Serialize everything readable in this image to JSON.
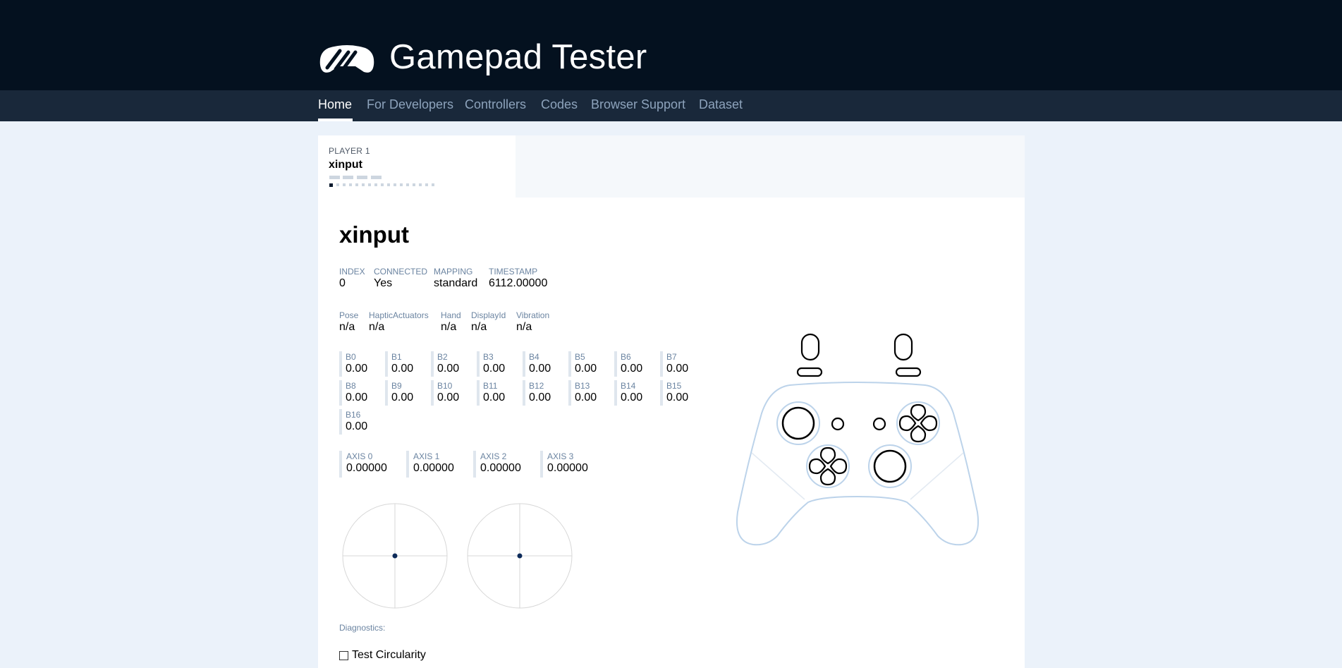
{
  "header": {
    "site_title": "Gamepad Tester",
    "logo_icon": "gamepad-logo-icon"
  },
  "nav": {
    "items": [
      {
        "label": "Home",
        "active": true
      },
      {
        "label": "For Developers",
        "active": false
      },
      {
        "label": "Controllers",
        "active": false
      },
      {
        "label": "Codes",
        "active": false
      },
      {
        "label": "Browser Support",
        "active": false
      },
      {
        "label": "Dataset",
        "active": false
      }
    ]
  },
  "player_tab": {
    "label": "PLAYER 1",
    "name": "xinput"
  },
  "controller": {
    "title": "xinput",
    "meta": [
      {
        "label": "INDEX",
        "value": "0"
      },
      {
        "label": "CONNECTED",
        "value": "Yes"
      },
      {
        "label": "MAPPING",
        "value": "standard"
      },
      {
        "label": "TIMESTAMP",
        "value": "6112.00000"
      }
    ],
    "extra": [
      {
        "label": "Pose",
        "value": "n/a"
      },
      {
        "label": "HapticActuators",
        "value": "n/a"
      },
      {
        "label": "Hand",
        "value": "n/a"
      },
      {
        "label": "DisplayId",
        "value": "n/a"
      },
      {
        "label": "Vibration",
        "value": "n/a"
      }
    ],
    "buttons": [
      {
        "label": "B0",
        "value": "0.00"
      },
      {
        "label": "B1",
        "value": "0.00"
      },
      {
        "label": "B2",
        "value": "0.00"
      },
      {
        "label": "B3",
        "value": "0.00"
      },
      {
        "label": "B4",
        "value": "0.00"
      },
      {
        "label": "B5",
        "value": "0.00"
      },
      {
        "label": "B6",
        "value": "0.00"
      },
      {
        "label": "B7",
        "value": "0.00"
      },
      {
        "label": "B8",
        "value": "0.00"
      },
      {
        "label": "B9",
        "value": "0.00"
      },
      {
        "label": "B10",
        "value": "0.00"
      },
      {
        "label": "B11",
        "value": "0.00"
      },
      {
        "label": "B12",
        "value": "0.00"
      },
      {
        "label": "B13",
        "value": "0.00"
      },
      {
        "label": "B14",
        "value": "0.00"
      },
      {
        "label": "B15",
        "value": "0.00"
      },
      {
        "label": "B16",
        "value": "0.00"
      }
    ],
    "axes": [
      {
        "label": "AXIS 0",
        "value": "0.00000"
      },
      {
        "label": "AXIS 1",
        "value": "0.00000"
      },
      {
        "label": "AXIS 2",
        "value": "0.00000"
      },
      {
        "label": "AXIS 3",
        "value": "0.00000"
      }
    ],
    "diagnostics_label": "Diagnostics:",
    "test_circularity_label": "Test Circularity",
    "test_circularity_checked": false
  },
  "colors": {
    "header_bg": "#04111f",
    "nav_bg": "#19283a",
    "page_bg": "#ebf2fa",
    "label": "#6b84a1",
    "stick_dot": "#0d2b5a",
    "pad_outline": "#bcd3ea"
  }
}
